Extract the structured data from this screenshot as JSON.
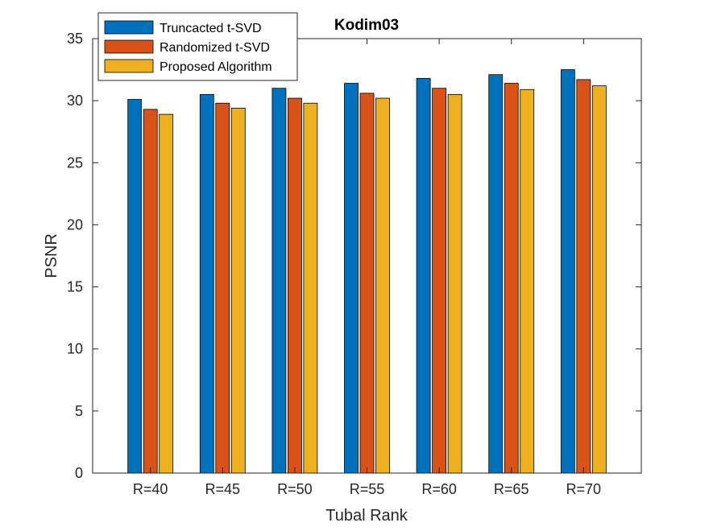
{
  "chart_data": {
    "type": "bar",
    "title": "Kodim03",
    "xlabel": "Tubal Rank",
    "ylabel": "PSNR",
    "ylim": [
      0,
      35
    ],
    "yticks": [
      0,
      5,
      10,
      15,
      20,
      25,
      30,
      35
    ],
    "categories": [
      "R=40",
      "R=45",
      "R=50",
      "R=55",
      "R=60",
      "R=65",
      "R=70"
    ],
    "series": [
      {
        "name": "Truncacted t-SVD",
        "color": "#0072bd",
        "values": [
          30.1,
          30.5,
          31.0,
          31.4,
          31.8,
          32.1,
          32.5
        ]
      },
      {
        "name": "Randomized t-SVD",
        "color": "#d95319",
        "values": [
          29.3,
          29.8,
          30.2,
          30.6,
          31.0,
          31.4,
          31.7
        ]
      },
      {
        "name": "Proposed Algorithm",
        "color": "#edb120",
        "values": [
          28.9,
          29.4,
          29.8,
          30.2,
          30.5,
          30.9,
          31.2
        ]
      }
    ],
    "legend_position": "top-left",
    "grid": false
  }
}
